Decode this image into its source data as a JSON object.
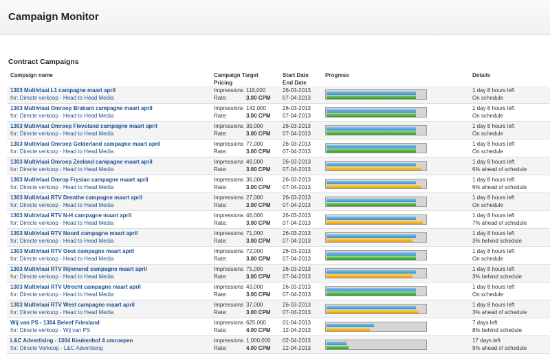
{
  "app": {
    "title": "Campaign Monitor"
  },
  "section": {
    "title": "Contract Campaigns"
  },
  "columns": {
    "name": "Campaign name",
    "target_1": "Campaign Target",
    "target_2": "Pricing",
    "dates_1": "Start Date",
    "dates_2": "End Date",
    "progress": "Progress",
    "details": "Details"
  },
  "labels": {
    "impressions": "Impressions",
    "rate": "Rate:"
  },
  "colors": {
    "time_bar": "#3d8fc5",
    "on_schedule": "#2f9a22",
    "off_schedule": "#e79c0a",
    "link": "#1a5191"
  },
  "campaigns": [
    {
      "name": "1303 Multivlaai L1 campagne maart april",
      "for_prefix": "for:",
      "for": "Directe verkoop - Head to Head Media",
      "impressions": "119,000",
      "rate": "3.00 CPM",
      "start": "26-03-2013",
      "end": "07-04-2013",
      "time_progress": 0.9,
      "delivery_progress": 0.9,
      "delivery_status": "green",
      "time_left": "1 day 8 hours left",
      "schedule": "On schedule"
    },
    {
      "name": "1303 Multivlaai Omroep Brabant campagne maart april",
      "for_prefix": "for:",
      "for": "Directe verkoop - Head to Head Media",
      "impressions": "142,000",
      "rate": "3.00 CPM",
      "start": "26-03-2013",
      "end": "07-04-2013",
      "time_progress": 0.9,
      "delivery_progress": 0.9,
      "delivery_status": "green",
      "time_left": "1 day 8 hours left",
      "schedule": "On schedule"
    },
    {
      "name": "1303 Multivlaai Omroep Flevoland campagne maart april",
      "for_prefix": "for:",
      "for": "Directe verkoop - Head to Head Media",
      "impressions": "39,000",
      "rate": "3.00 CPM",
      "start": "26-03-2013",
      "end": "07-04-2013",
      "time_progress": 0.9,
      "delivery_progress": 0.9,
      "delivery_status": "green",
      "time_left": "1 day 8 hours left",
      "schedule": "On schedule"
    },
    {
      "name": "1303 Multivlaai Omroep Gelderland campagne maart april",
      "for_prefix": "for:",
      "for": "Directe verkoop - Head to Head Media",
      "impressions": "77,000",
      "rate": "3.00 CPM",
      "start": "26-03-2013",
      "end": "07-04-2013",
      "time_progress": 0.9,
      "delivery_progress": 0.9,
      "delivery_status": "green",
      "time_left": "1 day 8 hours left",
      "schedule": "On schedule"
    },
    {
      "name": "1303 Multivlaai Omroep Zeeland campagne maart april",
      "for_prefix": "for:",
      "for": "Directe verkoop - Head to Head Media",
      "impressions": "49,000",
      "rate": "3.00 CPM",
      "start": "26-03-2013",
      "end": "07-04-2013",
      "time_progress": 0.9,
      "delivery_progress": 0.96,
      "delivery_status": "orange",
      "time_left": "1 day 8 hours left",
      "schedule": "6% ahead of schedule"
    },
    {
      "name": "1303 Multivlaai Omrop Fryslan campagne maart april",
      "for_prefix": "for:",
      "for": "Directe verkoop - Head to Head Media",
      "impressions": "36,000",
      "rate": "3.00 CPM",
      "start": "26-03-2013",
      "end": "07-04-2013",
      "time_progress": 0.9,
      "delivery_progress": 0.96,
      "delivery_status": "orange",
      "time_left": "1 day 8 hours left",
      "schedule": "6% ahead of schedule"
    },
    {
      "name": "1303 Multivlaai RTV Drenthe campagne maart april",
      "for_prefix": "for:",
      "for": "Directe verkoop - Head to Head Media",
      "impressions": "27,000",
      "rate": "3.00 CPM",
      "start": "26-03-2013",
      "end": "07-04-2013",
      "time_progress": 0.9,
      "delivery_progress": 0.9,
      "delivery_status": "green",
      "time_left": "1 day 8 hours left",
      "schedule": "On schedule"
    },
    {
      "name": "1303 Multivlaai RTV N-H campagne maart april",
      "for_prefix": "for:",
      "for": "Directe verkoop - Head to Head Media",
      "impressions": "46,000",
      "rate": "3.00 CPM",
      "start": "26-03-2013",
      "end": "07-04-2013",
      "time_progress": 0.9,
      "delivery_progress": 0.97,
      "delivery_status": "orange",
      "time_left": "1 day 8 hours left",
      "schedule": "7% ahead of schedule"
    },
    {
      "name": "1303 Multivlaai RTV Noord campagne maart april",
      "for_prefix": "for:",
      "for": "Directe verkoop - Head to Head Media",
      "impressions": "71,000",
      "rate": "3.00 CPM",
      "start": "26-03-2013",
      "end": "07-04-2013",
      "time_progress": 0.9,
      "delivery_progress": 0.87,
      "delivery_status": "orange",
      "time_left": "1 day 8 hours left",
      "schedule": "3% behind schedule"
    },
    {
      "name": "1303 Multivlaai RTV Oost campagne maart april",
      "for_prefix": "for:",
      "for": "Directe verkoop - Head to Head Media",
      "impressions": "72,000",
      "rate": "3.00 CPM",
      "start": "26-03-2013",
      "end": "07-04-2013",
      "time_progress": 0.9,
      "delivery_progress": 0.9,
      "delivery_status": "green",
      "time_left": "1 day 8 hours left",
      "schedule": "On schedule"
    },
    {
      "name": "1303 Multivlaai RTV Rijnmond campagne maart april",
      "for_prefix": "for:",
      "for": "Directe verkoop - Head to Head Media",
      "impressions": "75,000",
      "rate": "3.00 CPM",
      "start": "26-03-2013",
      "end": "07-04-2013",
      "time_progress": 0.9,
      "delivery_progress": 0.87,
      "delivery_status": "orange",
      "time_left": "1 day 8 hours left",
      "schedule": "3% behind schedule"
    },
    {
      "name": "1303 Multivlaai RTV Utrecht campagne maart april",
      "for_prefix": "for:",
      "for": "Directe verkoop - Head to Head Media",
      "impressions": "43,000",
      "rate": "3.00 CPM",
      "start": "26-03-2013",
      "end": "07-04-2013",
      "time_progress": 0.9,
      "delivery_progress": 0.9,
      "delivery_status": "green",
      "time_left": "1 day 8 hours left",
      "schedule": "On schedule"
    },
    {
      "name": "1303 Multivlaai RTV West campagne maart april",
      "for_prefix": "for:",
      "for": "Directe verkoop - Head to Head Media",
      "impressions": "37,000",
      "rate": "3.00 CPM",
      "start": "26-03-2013",
      "end": "07-04-2013",
      "time_progress": 0.9,
      "delivery_progress": 0.93,
      "delivery_status": "orange",
      "time_left": "1 day 8 hours left",
      "schedule": "3% ahead of schedule"
    },
    {
      "name": "Wij van PS - 1304 Beleef Friesland",
      "for_prefix": "for:",
      "for": "Directe verkoop - Wij van PS",
      "impressions": "625,000",
      "rate": "4.00 CPM",
      "start": "01-04-2013",
      "end": "12-04-2013",
      "time_progress": 0.48,
      "delivery_progress": 0.44,
      "delivery_status": "orange",
      "time_left": "7 days left",
      "schedule": "8% behind schedule"
    },
    {
      "name": "L&C Advertising - 1304 Keukenhof 4 omroepen",
      "for_prefix": "for:",
      "for": "Directe Verkoop - L&C Advertising",
      "impressions": "1,000,000",
      "rate": "4.00 CPM",
      "start": "02-04-2013",
      "end": "22-04-2013",
      "time_progress": 0.2,
      "delivery_progress": 0.22,
      "delivery_status": "green",
      "time_left": "17 days left",
      "schedule": "9% ahead of schedule"
    }
  ]
}
